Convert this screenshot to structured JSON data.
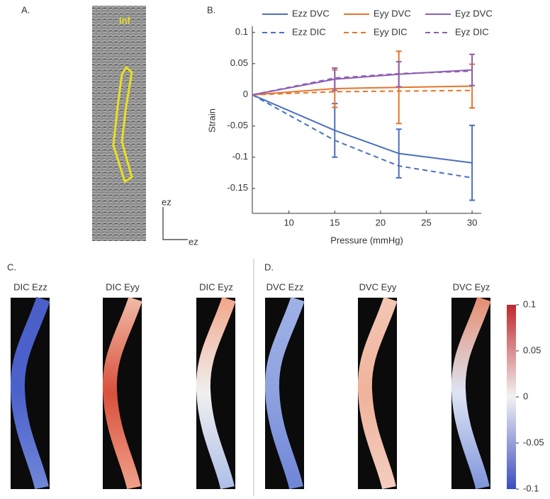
{
  "panel_labels": [
    "A.",
    "B.",
    "C.",
    "D."
  ],
  "image_a": {
    "label": "Inf",
    "axis_labels": [
      "ez",
      "ez"
    ]
  },
  "chart_data": {
    "type": "line",
    "xlabel": "Pressure (mmHg)",
    "ylabel": "Strain",
    "x": [
      6,
      15,
      22,
      30
    ],
    "xlim": [
      6,
      31
    ],
    "xticks": [
      10,
      15,
      20,
      25,
      30
    ],
    "ylim": [
      -0.19,
      0.11
    ],
    "yticks": [
      -0.15,
      -0.1,
      -0.05,
      0,
      0.05,
      0.1
    ],
    "series": [
      {
        "name": "Ezz DVC",
        "color": "#4a6fbf",
        "dash": false,
        "values": [
          0,
          -0.057,
          -0.094,
          -0.109
        ],
        "errors": [
          0,
          0.043,
          0.039,
          0.06
        ]
      },
      {
        "name": "Eyy DVC",
        "color": "#e8742a",
        "dash": false,
        "values": [
          0,
          0.01,
          0.012,
          0.014
        ],
        "errors": [
          0,
          0.03,
          0.058,
          0.035
        ]
      },
      {
        "name": "Eyz DVC",
        "color": "#8e5fb5",
        "dash": false,
        "values": [
          0,
          0.025,
          0.033,
          0.04
        ],
        "errors": [
          0,
          0.018,
          0.02,
          0.025
        ]
      },
      {
        "name": "Ezz DIC",
        "color": "#4a6fbf",
        "dash": true,
        "values": [
          0,
          -0.073,
          -0.114,
          -0.133
        ]
      },
      {
        "name": "Eyy DIC",
        "color": "#e8742a",
        "dash": true,
        "values": [
          0,
          0.005,
          0.006,
          0.007
        ]
      },
      {
        "name": "Eyz DIC",
        "color": "#8e5fb5",
        "dash": true,
        "values": [
          0,
          0.027,
          0.034,
          0.038
        ]
      }
    ]
  },
  "maps": [
    {
      "label": "DIC Ezz"
    },
    {
      "label": "DIC Eyy"
    },
    {
      "label": "DIC Eyz"
    },
    {
      "label": "DVC Ezz"
    },
    {
      "label": "DVC Eyy"
    },
    {
      "label": "DVC Eyz"
    }
  ],
  "colorbar": {
    "lim": [
      -0.1,
      0.1
    ],
    "ticks": [
      0.1,
      0.05,
      0,
      -0.05,
      -0.1
    ]
  }
}
